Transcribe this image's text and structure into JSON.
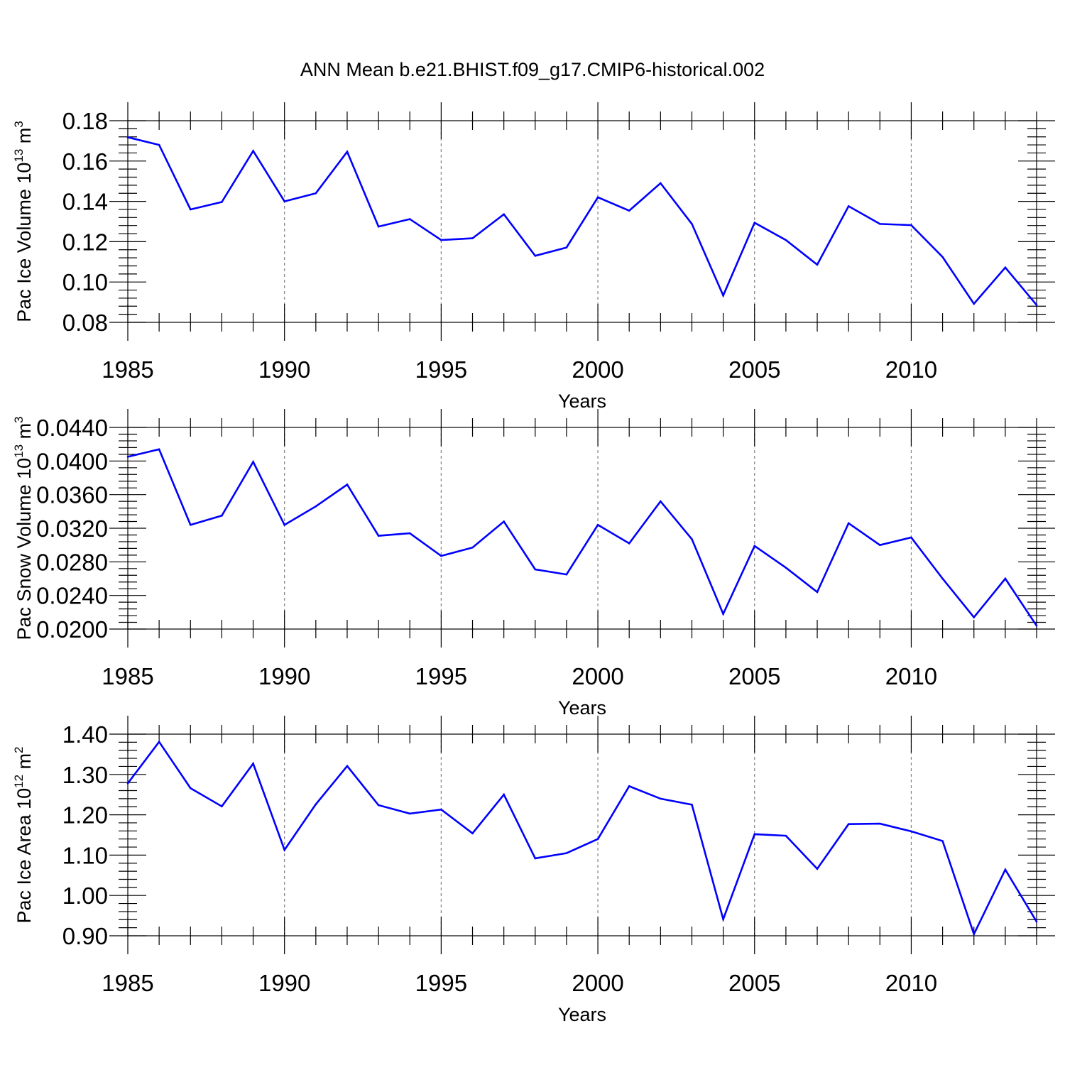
{
  "figure": {
    "title": "ANN Mean b.e21.BHIST.f09_g17.CMIP6-historical.002",
    "line_color": "#0000ff",
    "grid_color": "#7f7f7f"
  },
  "chart_data": [
    {
      "type": "line",
      "xlabel": "Years",
      "ylabel": "Pac Ice Volume 10",
      "ylabel_sup": "13",
      "ylabel_unit": " m",
      "ylabel_unit_sup": "3",
      "xlim": [
        1985,
        2014
      ],
      "ylim": [
        0.08,
        0.18
      ],
      "yticks": [
        0.08,
        0.1,
        0.12,
        0.14,
        0.16,
        0.18
      ],
      "ytick_labels": [
        "0.08",
        "0.10",
        "0.12",
        "0.14",
        "0.16",
        "0.18"
      ],
      "xticks": [
        1985,
        1990,
        1995,
        2000,
        2005,
        2010
      ],
      "xtick_labels": [
        "1985",
        "1990",
        "1995",
        "2000",
        "2005",
        "2010"
      ],
      "grid_x": [
        1990,
        1995,
        2000,
        2005,
        2010
      ],
      "x": [
        1985,
        1986,
        1987,
        1988,
        1989,
        1990,
        1991,
        1992,
        1993,
        1994,
        1995,
        1996,
        1997,
        1998,
        1999,
        2000,
        2001,
        2002,
        2003,
        2004,
        2005,
        2006,
        2007,
        2008,
        2009,
        2010,
        2011,
        2012,
        2013,
        2014
      ],
      "y": [
        0.1718,
        0.168,
        0.136,
        0.1397,
        0.165,
        0.14,
        0.144,
        0.1646,
        0.1275,
        0.1312,
        0.1208,
        0.1217,
        0.1336,
        0.113,
        0.1171,
        0.142,
        0.1354,
        0.149,
        0.1288,
        0.0933,
        0.1294,
        0.1208,
        0.1086,
        0.1376,
        0.1288,
        0.1282,
        0.1124,
        0.0892,
        0.1072,
        0.0886
      ]
    },
    {
      "type": "line",
      "xlabel": "Years",
      "ylabel": "Pac Snow Volume 10",
      "ylabel_sup": "13",
      "ylabel_unit": " m",
      "ylabel_unit_sup": "3",
      "xlim": [
        1985,
        2014
      ],
      "ylim": [
        0.02,
        0.044
      ],
      "yticks": [
        0.02,
        0.024,
        0.028,
        0.032,
        0.036,
        0.04,
        0.044
      ],
      "ytick_labels": [
        "0.0200",
        "0.0240",
        "0.0280",
        "0.0320",
        "0.0360",
        "0.0400",
        "0.0440"
      ],
      "xticks": [
        1985,
        1990,
        1995,
        2000,
        2005,
        2010
      ],
      "xtick_labels": [
        "1985",
        "1990",
        "1995",
        "2000",
        "2005",
        "2010"
      ],
      "grid_x": [
        1990,
        1995,
        2000,
        2005,
        2010
      ],
      "x": [
        1985,
        1986,
        1987,
        1988,
        1989,
        1990,
        1991,
        1992,
        1993,
        1994,
        1995,
        1996,
        1997,
        1998,
        1999,
        2000,
        2001,
        2002,
        2003,
        2004,
        2005,
        2006,
        2007,
        2008,
        2009,
        2010,
        2011,
        2012,
        2013,
        2014
      ],
      "y": [
        0.0405,
        0.0414,
        0.0324,
        0.0335,
        0.0399,
        0.0324,
        0.0346,
        0.0372,
        0.0311,
        0.0314,
        0.0287,
        0.0297,
        0.0328,
        0.0271,
        0.0265,
        0.0324,
        0.0302,
        0.0352,
        0.0307,
        0.0218,
        0.0299,
        0.0273,
        0.0244,
        0.0326,
        0.03,
        0.0309,
        0.026,
        0.0214,
        0.026,
        0.0204
      ]
    },
    {
      "type": "line",
      "xlabel": "Years",
      "ylabel": "Pac Ice Area 10",
      "ylabel_sup": "12",
      "ylabel_unit": " m",
      "ylabel_unit_sup": "2",
      "xlim": [
        1985,
        2014
      ],
      "ylim": [
        0.9,
        1.4
      ],
      "yticks": [
        0.9,
        1.0,
        1.1,
        1.2,
        1.3,
        1.4
      ],
      "ytick_labels": [
        "0.90",
        "1.00",
        "1.10",
        "1.20",
        "1.30",
        "1.40"
      ],
      "xticks": [
        1985,
        1990,
        1995,
        2000,
        2005,
        2010
      ],
      "xtick_labels": [
        "1985",
        "1990",
        "1995",
        "2000",
        "2005",
        "2010"
      ],
      "grid_x": [
        1990,
        1995,
        2000,
        2005,
        2010
      ],
      "x": [
        1985,
        1986,
        1987,
        1988,
        1989,
        1990,
        1991,
        1992,
        1993,
        1994,
        1995,
        1996,
        1997,
        1998,
        1999,
        2000,
        2001,
        2002,
        2003,
        2004,
        2005,
        2006,
        2007,
        2008,
        2009,
        2010,
        2011,
        2012,
        2013,
        2014
      ],
      "y": [
        1.278,
        1.381,
        1.266,
        1.221,
        1.327,
        1.113,
        1.226,
        1.321,
        1.224,
        1.203,
        1.213,
        1.154,
        1.25,
        1.092,
        1.105,
        1.14,
        1.271,
        1.24,
        1.225,
        0.941,
        1.152,
        1.148,
        1.066,
        1.177,
        1.178,
        1.159,
        1.135,
        0.904,
        1.064,
        0.935
      ]
    }
  ]
}
